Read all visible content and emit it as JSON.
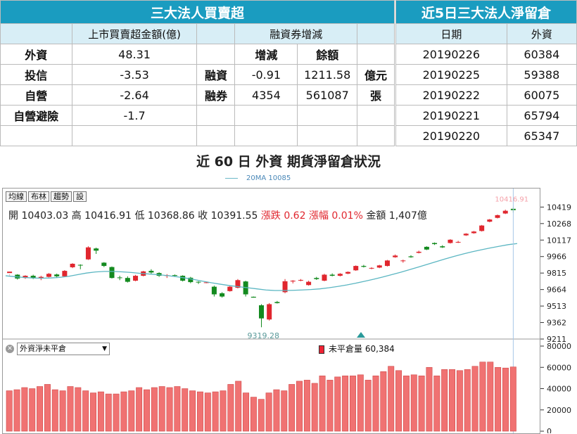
{
  "table1": {
    "title": "三大法人買賣超",
    "h_amount": "上市買賣超金額(億)",
    "h_margin": "融資券增減",
    "h_change": "增減",
    "h_balance": "餘額",
    "rows": [
      {
        "name": "外資",
        "val": "48.31"
      },
      {
        "name": "投信",
        "val": "-3.53"
      },
      {
        "name": "自營",
        "val": "-2.64"
      },
      {
        "name": "自營避險",
        "val": "-1.7"
      }
    ],
    "margin": [
      {
        "name": "融資",
        "change": "-0.91",
        "balance": "1211.58",
        "unit": "億元"
      },
      {
        "name": "融券",
        "change": "4354",
        "balance": "561087",
        "unit": "張"
      }
    ]
  },
  "table2": {
    "title": "近5日三大法人淨留倉",
    "h_date": "日期",
    "h_foreign": "外資",
    "rows": [
      {
        "date": "20190226",
        "v": "60384"
      },
      {
        "date": "20190225",
        "v": "59388"
      },
      {
        "date": "20190222",
        "v": "60075"
      },
      {
        "date": "20190221",
        "v": "65794"
      },
      {
        "date": "20190220",
        "v": "65347"
      }
    ]
  },
  "chart_title": "近 60 日 外資 期貨淨留倉狀況",
  "legend": "20MA 10085",
  "buttons": [
    "均線",
    "布林",
    "趨勢",
    "設"
  ],
  "info": {
    "open": "開 10403.03",
    "high": "高 10416.91",
    "low": "低 10368.86",
    "close": "收 10391.55",
    "change": "漲跌 0.62",
    "pct": "漲幅 0.01%",
    "amount": "金額 1,407億"
  },
  "select_value": "外資淨未平倉",
  "oi_label": "未平倉量 60,384",
  "colors": {
    "header": "#1a9cc0",
    "up": "#e0262e",
    "down": "#138a1f",
    "ma": "#5bb6c2",
    "bar": "#f07272"
  },
  "chart_data": [
    {
      "type": "candlestick",
      "ylim": [
        9211,
        10460
      ],
      "yticks": [
        10419,
        10268,
        10117,
        9966,
        9815,
        9664,
        9513,
        9362,
        9211
      ],
      "low_label": "9319.28",
      "high_label": "10416.91",
      "ma_label": "20MA 10085",
      "ma": [
        9790,
        9782,
        9775,
        9770,
        9768,
        9770,
        9775,
        9785,
        9800,
        9815,
        9825,
        9830,
        9830,
        9826,
        9820,
        9812,
        9806,
        9800,
        9792,
        9782,
        9770,
        9756,
        9740,
        9725,
        9712,
        9700,
        9690,
        9680,
        9670,
        9660,
        9655,
        9655,
        9657,
        9660,
        9664,
        9670,
        9680,
        9692,
        9706,
        9722,
        9740,
        9758,
        9778,
        9800,
        9822,
        9846,
        9870,
        9895,
        9920,
        9945,
        9968,
        9990,
        10010,
        10028,
        10045,
        10060,
        10075,
        10085
      ],
      "candles": [
        [
          9815,
          9828,
          9800,
          9795
        ],
        [
          9800,
          9765,
          9805,
          9755
        ],
        [
          9770,
          9790,
          9795,
          9762
        ],
        [
          9790,
          9770,
          9800,
          9760
        ],
        [
          9765,
          9780,
          9790,
          9750
        ],
        [
          9780,
          9808,
          9815,
          9775
        ],
        [
          9802,
          9785,
          9810,
          9770
        ],
        [
          9785,
          9835,
          9842,
          9780
        ],
        [
          9868,
          9900,
          9905,
          9860
        ],
        [
          9890,
          9888,
          9895,
          9850
        ],
        [
          9940,
          10050,
          10060,
          9935
        ],
        [
          10040,
          10020,
          10048,
          9990
        ],
        [
          9910,
          9880,
          9915,
          9870
        ],
        [
          9870,
          9770,
          9875,
          9765
        ],
        [
          9775,
          9770,
          9790,
          9750
        ],
        [
          9770,
          9735,
          9785,
          9728
        ],
        [
          9745,
          9790,
          9798,
          9740
        ],
        [
          9790,
          9830,
          9835,
          9785
        ],
        [
          9835,
          9820,
          9850,
          9810
        ],
        [
          9815,
          9790,
          9822,
          9780
        ],
        [
          9790,
          9795,
          9805,
          9770
        ],
        [
          9796,
          9790,
          9802,
          9780
        ],
        [
          9790,
          9745,
          9795,
          9738
        ],
        [
          9772,
          9732,
          9780,
          9722
        ],
        [
          9735,
          9730,
          9740,
          9715
        ],
        [
          9728,
          9730,
          9735,
          9722
        ],
        [
          9690,
          9620,
          9700,
          9600
        ],
        [
          9630,
          9600,
          9640,
          9590
        ],
        [
          9650,
          9690,
          9700,
          9645
        ],
        [
          9680,
          9750,
          9760,
          9675
        ],
        [
          9738,
          9620,
          9745,
          9600
        ],
        [
          9598,
          9590,
          9600,
          9590
        ],
        [
          9520,
          9400,
          9530,
          9319
        ],
        [
          9390,
          9530,
          9540,
          9380
        ],
        [
          9550,
          9540,
          9560,
          9536
        ],
        [
          9640,
          9740,
          9760,
          9630
        ],
        [
          9738,
          9745,
          9750,
          9720
        ],
        [
          9748,
          9752,
          9760,
          9740
        ],
        [
          9705,
          9735,
          9745,
          9700
        ],
        [
          9770,
          9760,
          9780,
          9752
        ],
        [
          9745,
          9800,
          9808,
          9740
        ],
        [
          9800,
          9790,
          9812,
          9785
        ],
        [
          9790,
          9808,
          9815,
          9784
        ],
        [
          9810,
          9825,
          9830,
          9805
        ],
        [
          9840,
          9880,
          9885,
          9835
        ],
        [
          9880,
          9872,
          9890,
          9866
        ],
        [
          9860,
          9862,
          9868,
          9850
        ],
        [
          9865,
          9885,
          9890,
          9860
        ],
        [
          9880,
          9930,
          9935,
          9875
        ],
        [
          9960,
          9975,
          9985,
          9955
        ],
        [
          9928,
          9930,
          9938,
          9910
        ],
        [
          9968,
          9960,
          9978,
          9955
        ],
        [
          10000,
          10010,
          10020,
          9995
        ],
        [
          10055,
          10030,
          10060,
          10025
        ],
        [
          10090,
          10080,
          10095,
          10072
        ],
        [
          10060,
          10050,
          10070,
          10045
        ],
        [
          10090,
          10120,
          10125,
          10085
        ],
        [
          10095,
          10100,
          10110,
          10090
        ],
        [
          10160,
          10175,
          10180,
          10155
        ],
        [
          10180,
          10195,
          10200,
          10175
        ],
        [
          10200,
          10250,
          10255,
          10195
        ],
        [
          10285,
          10305,
          10310,
          10280
        ],
        [
          10320,
          10345,
          10350,
          10315
        ],
        [
          10360,
          10385,
          10395,
          10355
        ],
        [
          10403,
          10391,
          10417,
          10368
        ]
      ]
    },
    {
      "type": "bar",
      "title": "外資淨未平倉",
      "ylim": [
        0,
        80000
      ],
      "yticks": [
        80000,
        60000,
        40000,
        20000,
        0
      ],
      "values": [
        38000,
        39000,
        41000,
        40000,
        42000,
        44000,
        39000,
        38000,
        42000,
        41000,
        38000,
        36000,
        37000,
        35000,
        35000,
        37000,
        38000,
        41000,
        39000,
        41000,
        42000,
        41000,
        42000,
        40000,
        38000,
        37000,
        36000,
        37000,
        38000,
        44000,
        47000,
        36000,
        32000,
        30000,
        36000,
        39000,
        38000,
        44000,
        47000,
        48000,
        45000,
        52000,
        48000,
        51000,
        52000,
        52000,
        53000,
        48000,
        52000,
        56000,
        61000,
        57000,
        52000,
        53000,
        52000,
        60000,
        52000,
        58000,
        58000,
        57000,
        58000,
        61000,
        65000,
        65000,
        60000,
        59388,
        60384
      ]
    }
  ]
}
